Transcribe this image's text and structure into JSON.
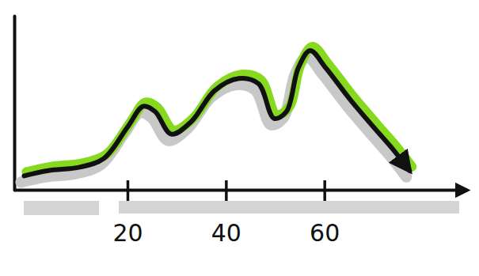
{
  "chart_data": {
    "type": "line",
    "x": [
      -1,
      3.9,
      10.3,
      15.2,
      20,
      23.2,
      25.6,
      28.9,
      32.9,
      37.7,
      42.6,
      46.6,
      49.8,
      52.3,
      54.7,
      57.1,
      60.3,
      65.2,
      70,
      74,
      77.3
    ],
    "values": [
      8,
      11,
      13,
      18,
      36,
      48,
      45,
      32,
      39,
      57,
      64,
      61,
      41,
      45,
      70,
      80,
      70,
      52,
      36,
      23,
      11
    ],
    "color": "#111111",
    "xlim": [
      -3,
      89
    ],
    "xticks": [
      20,
      40,
      60
    ],
    "ylim": [
      0,
      100
    ],
    "tick_labels": "x"
  }
}
